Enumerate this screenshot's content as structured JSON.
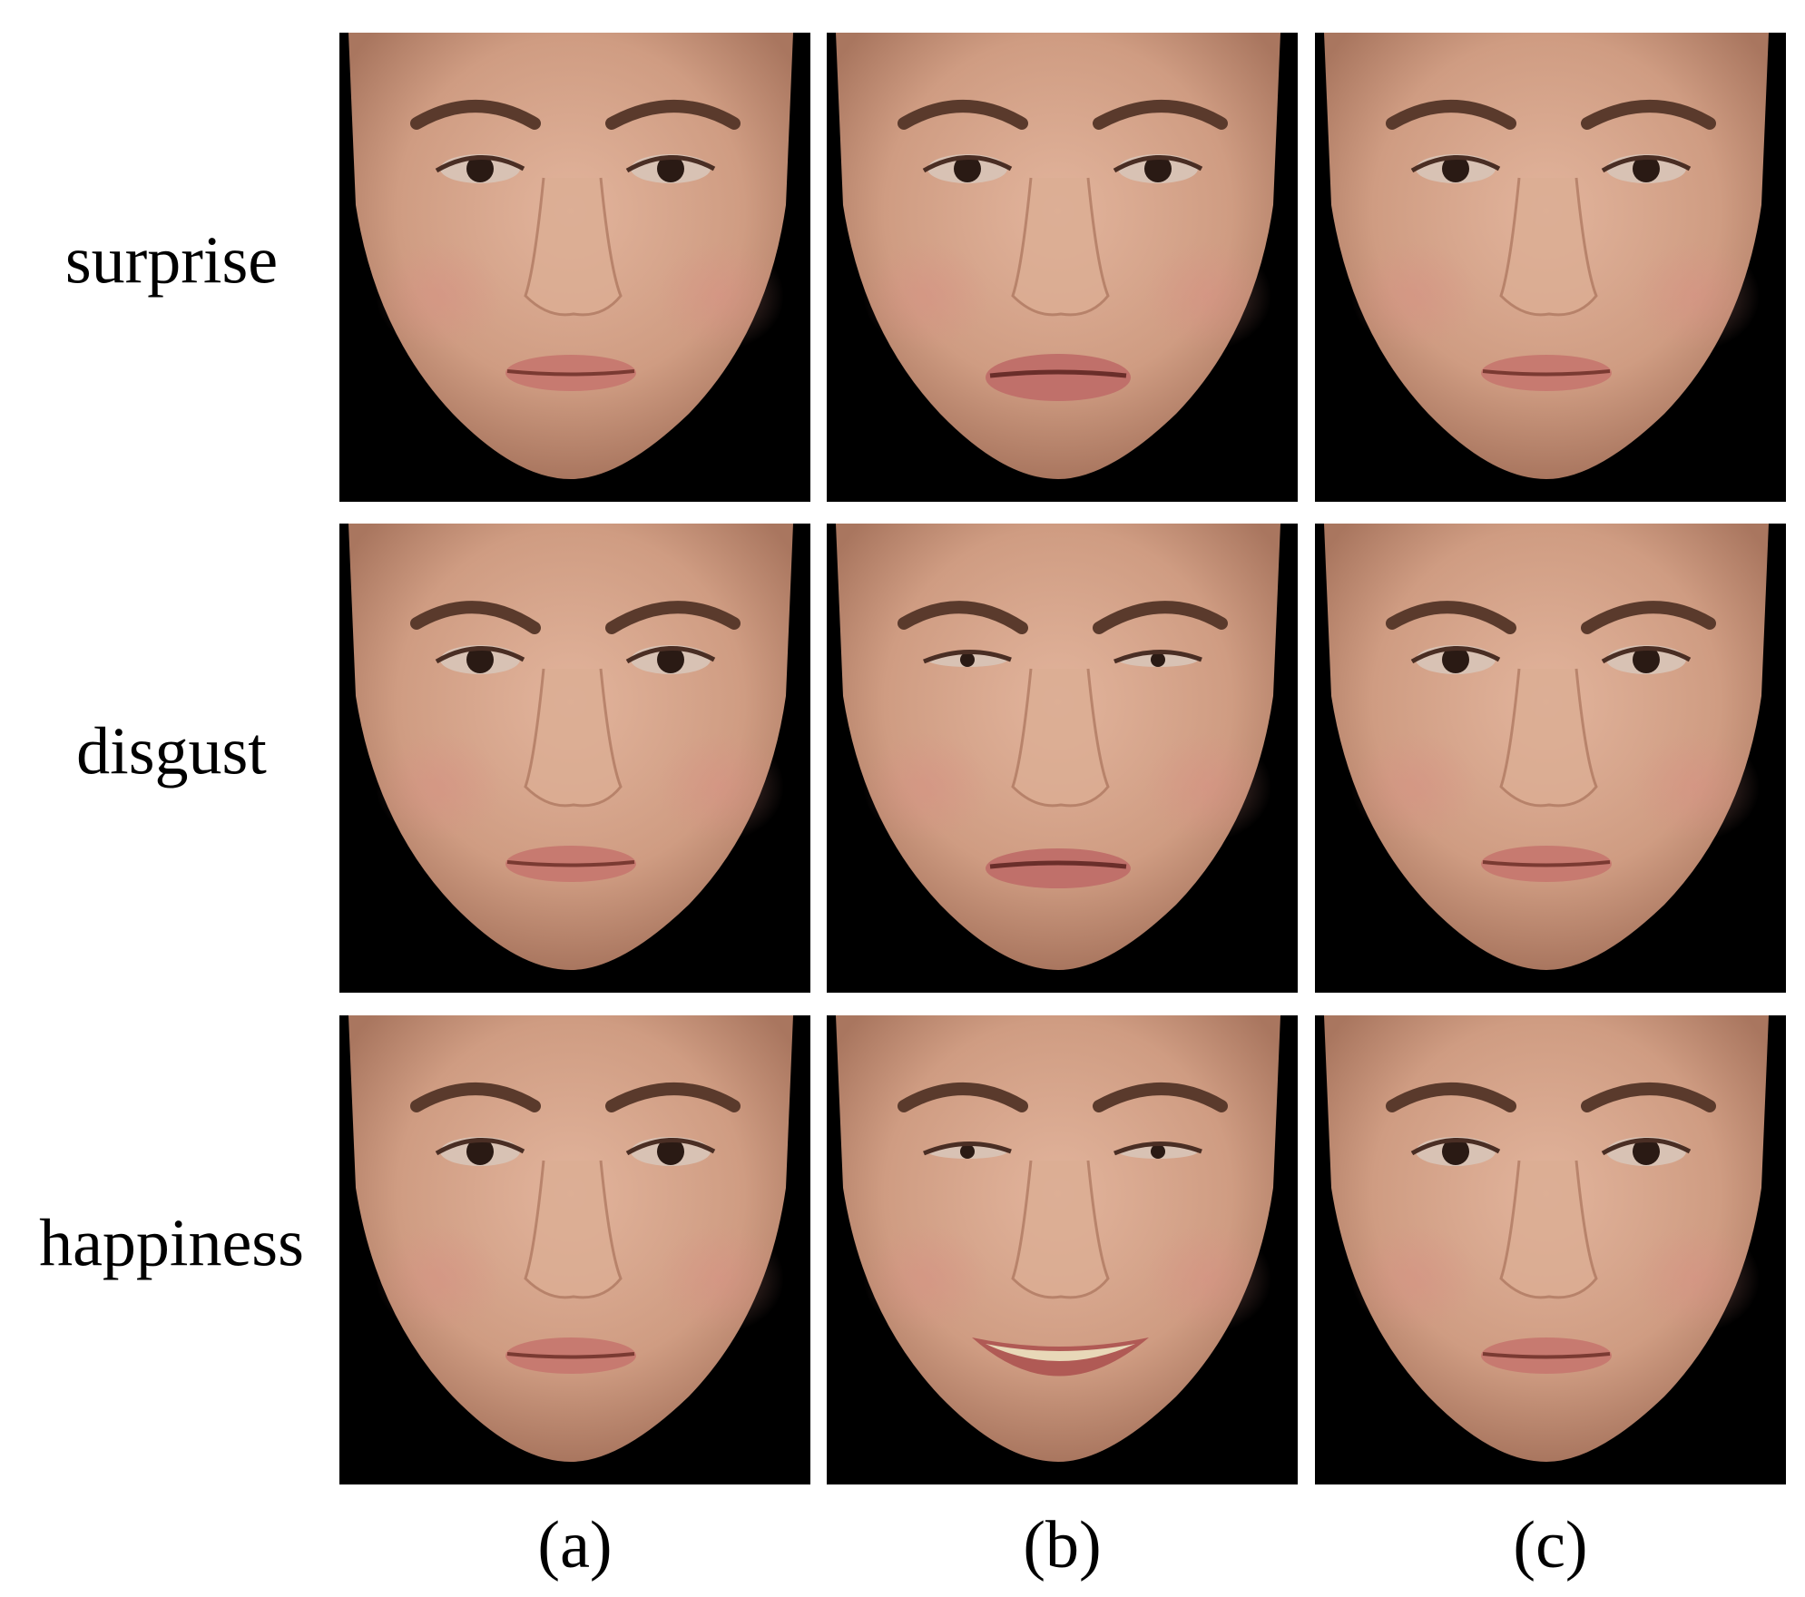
{
  "row_labels": [
    "surprise",
    "disgust",
    "happiness"
  ],
  "column_labels": [
    "(a)",
    "(b)",
    "(c)"
  ]
}
